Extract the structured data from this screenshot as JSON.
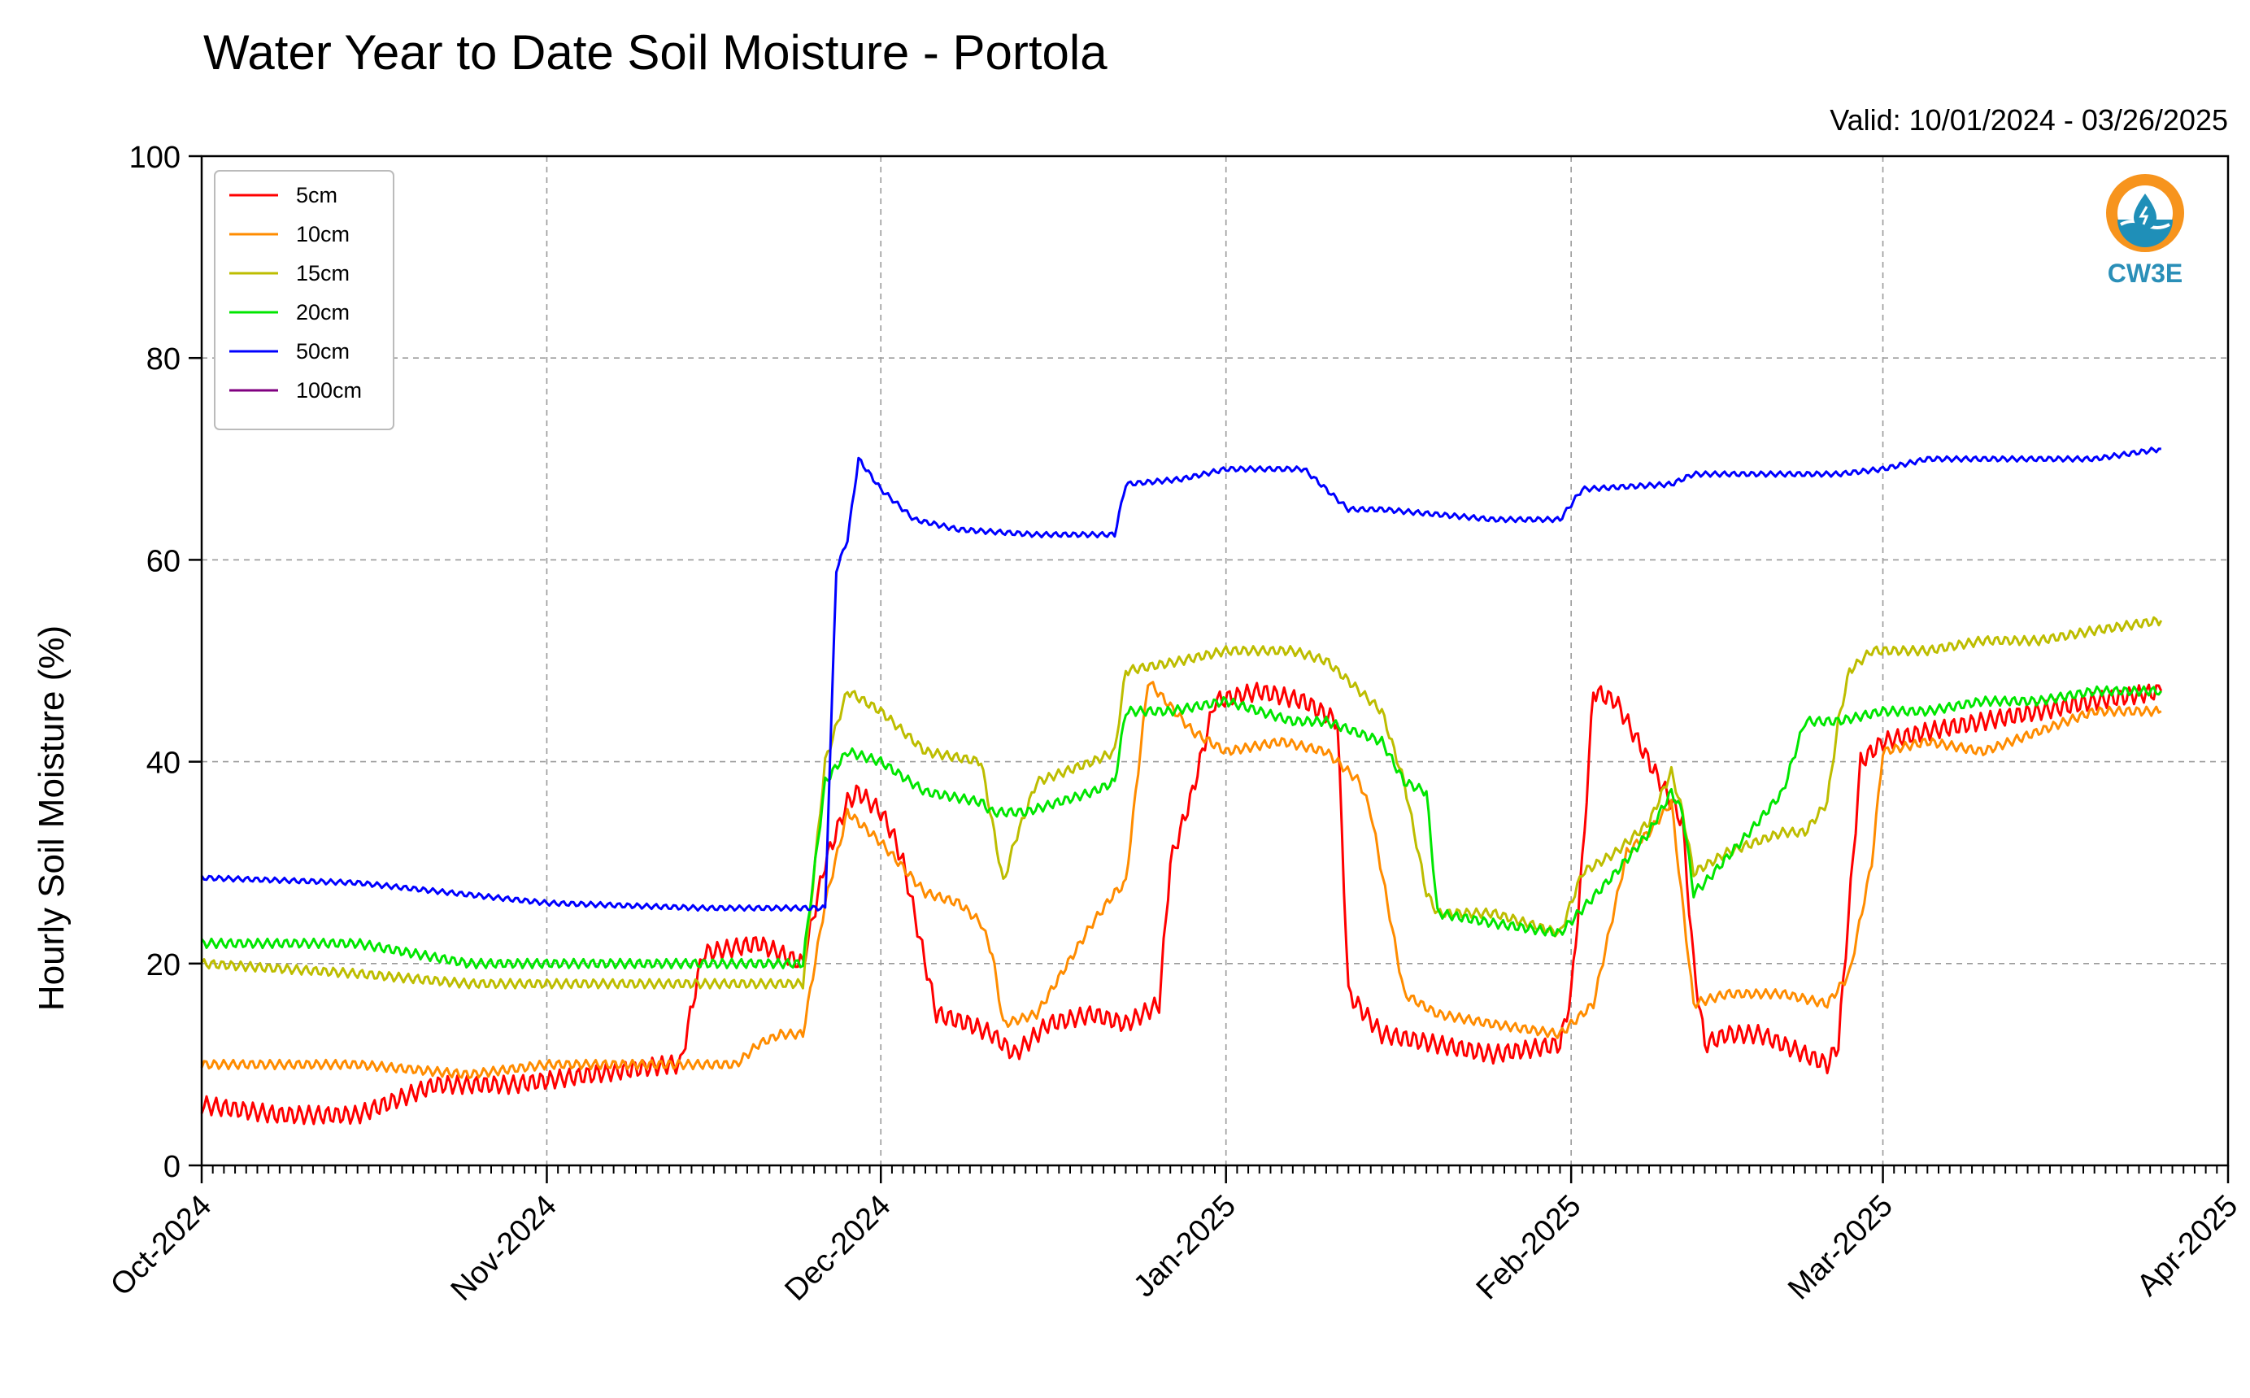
{
  "chart_data": {
    "type": "line",
    "title": "Water Year to Date Soil Moisture - Portola",
    "subtitle": "Valid: 10/01/2024 - 03/26/2025",
    "xlabel": "",
    "ylabel": "Hourly Soil Moisture (%)",
    "x_axis": "date",
    "xlim": [
      "2024-10-01",
      "2025-04-01"
    ],
    "ylim": [
      0,
      100
    ],
    "x_ticks": [
      "2024-10-01",
      "2024-11-01",
      "2024-12-01",
      "2025-01-01",
      "2025-02-01",
      "2025-03-01",
      "2025-04-01"
    ],
    "x_tick_labels": [
      "Oct-2024",
      "Nov-2024",
      "Dec-2024",
      "Jan-2025",
      "Feb-2025",
      "Mar-2025",
      "Apr-2025"
    ],
    "y_ticks": [
      0,
      20,
      40,
      60,
      80,
      100
    ],
    "y_tick_labels": [
      "0",
      "20",
      "40",
      "60",
      "80",
      "100"
    ],
    "grid": true,
    "legend_position": "top-left",
    "series": [
      {
        "name": "5cm",
        "color": "#ff0000",
        "x": [
          "2024-10-01",
          "2024-10-08",
          "2024-10-15",
          "2024-10-22",
          "2024-10-29",
          "2024-11-05",
          "2024-11-12",
          "2024-11-13",
          "2024-11-15",
          "2024-11-20",
          "2024-11-24",
          "2024-11-26",
          "2024-11-28",
          "2024-11-29",
          "2024-12-01",
          "2024-12-02",
          "2024-12-03",
          "2024-12-06",
          "2024-12-09",
          "2024-12-11",
          "2024-12-13",
          "2024-12-16",
          "2024-12-20",
          "2024-12-23",
          "2024-12-26",
          "2024-12-27",
          "2024-12-29",
          "2024-12-31",
          "2025-01-04",
          "2025-01-08",
          "2025-01-11",
          "2025-01-12",
          "2025-01-15",
          "2025-01-20",
          "2025-01-25",
          "2025-01-31",
          "2025-02-01",
          "2025-02-02",
          "2025-02-03",
          "2025-02-05",
          "2025-02-07",
          "2025-02-09",
          "2025-02-11",
          "2025-02-12",
          "2025-02-13",
          "2025-02-15",
          "2025-02-18",
          "2025-02-22",
          "2025-02-24",
          "2025-02-25",
          "2025-02-27",
          "2025-03-01",
          "2025-03-05",
          "2025-03-10",
          "2025-03-15",
          "2025-03-20",
          "2025-03-26"
        ],
        "y": [
          6,
          5,
          5,
          8,
          8,
          9,
          10,
          10,
          21,
          22,
          20,
          30,
          36,
          37,
          35,
          33,
          30,
          15,
          14,
          13,
          11,
          14,
          15,
          14,
          16,
          30,
          37,
          46,
          47,
          46,
          44,
          17,
          13,
          12,
          11,
          12,
          17,
          30,
          47,
          46,
          42,
          38,
          34,
          20,
          12,
          13,
          13,
          11,
          10,
          12,
          40,
          42,
          43,
          44,
          45,
          46,
          47
        ]
      },
      {
        "name": "10cm",
        "color": "#ff8c00",
        "x": [
          "2024-10-01",
          "2024-10-15",
          "2024-10-25",
          "2024-11-01",
          "2024-11-10",
          "2024-11-15",
          "2024-11-18",
          "2024-11-20",
          "2024-11-22",
          "2024-11-24",
          "2024-11-26",
          "2024-11-28",
          "2024-12-01",
          "2024-12-05",
          "2024-12-08",
          "2024-12-10",
          "2024-12-11",
          "2024-12-12",
          "2024-12-15",
          "2024-12-20",
          "2024-12-22",
          "2024-12-23",
          "2024-12-25",
          "2024-12-29",
          "2025-01-01",
          "2025-01-06",
          "2025-01-10",
          "2025-01-13",
          "2025-01-14",
          "2025-01-17",
          "2025-01-20",
          "2025-01-25",
          "2025-01-31",
          "2025-02-01",
          "2025-02-03",
          "2025-02-06",
          "2025-02-08",
          "2025-02-10",
          "2025-02-12",
          "2025-02-15",
          "2025-02-20",
          "2025-02-24",
          "2025-02-26",
          "2025-02-28",
          "2025-03-01",
          "2025-03-05",
          "2025-03-10",
          "2025-03-15",
          "2025-03-20",
          "2025-03-26"
        ],
        "y": [
          10,
          10,
          9,
          10,
          10,
          10,
          10,
          12,
          13,
          13,
          26,
          35,
          32,
          27,
          26,
          24,
          21,
          14,
          15,
          24,
          27,
          28,
          48,
          43,
          41,
          42,
          41,
          38,
          35,
          17,
          15,
          14,
          13,
          14,
          16,
          31,
          33,
          36,
          16,
          17,
          17,
          16,
          19,
          30,
          41,
          42,
          41,
          43,
          45,
          45
        ]
      },
      {
        "name": "15cm",
        "color": "#bdbd00",
        "x": [
          "2024-10-01",
          "2024-10-15",
          "2024-10-25",
          "2024-11-01",
          "2024-11-10",
          "2024-11-20",
          "2024-11-24",
          "2024-11-26",
          "2024-11-28",
          "2024-12-01",
          "2024-12-05",
          "2024-12-10",
          "2024-12-11",
          "2024-12-12",
          "2024-12-13",
          "2024-12-15",
          "2024-12-20",
          "2024-12-22",
          "2024-12-23",
          "2024-12-28",
          "2025-01-01",
          "2025-01-07",
          "2025-01-10",
          "2025-01-15",
          "2025-01-17",
          "2025-01-19",
          "2025-01-20",
          "2025-01-25",
          "2025-01-31",
          "2025-02-02",
          "2025-02-05",
          "2025-02-08",
          "2025-02-10",
          "2025-02-11",
          "2025-02-12",
          "2025-02-15",
          "2025-02-20",
          "2025-02-22",
          "2025-02-24",
          "2025-02-25",
          "2025-02-26",
          "2025-02-28",
          "2025-03-05",
          "2025-03-10",
          "2025-03-15",
          "2025-03-20",
          "2025-03-26"
        ],
        "y": [
          20,
          19,
          18,
          18,
          18,
          18,
          18,
          40,
          47,
          45,
          41,
          40,
          34,
          28,
          32,
          38,
          40,
          41,
          49,
          50,
          51,
          51,
          50,
          45,
          38,
          27,
          25,
          25,
          23,
          29,
          31,
          34,
          39,
          35,
          29,
          31,
          33,
          33,
          36,
          44,
          49,
          51,
          51,
          52,
          52,
          53,
          54
        ]
      },
      {
        "name": "20cm",
        "color": "#00e600",
        "x": [
          "2024-10-01",
          "2024-10-15",
          "2024-10-25",
          "2024-11-01",
          "2024-11-10",
          "2024-11-20",
          "2024-11-24",
          "2024-11-26",
          "2024-11-28",
          "2024-12-01",
          "2024-12-05",
          "2024-12-10",
          "2024-12-11",
          "2024-12-14",
          "2024-12-20",
          "2024-12-22",
          "2024-12-23",
          "2024-12-27",
          "2025-01-01",
          "2025-01-07",
          "2025-01-10",
          "2025-01-15",
          "2025-01-17",
          "2025-01-19",
          "2025-01-20",
          "2025-01-25",
          "2025-01-31",
          "2025-02-05",
          "2025-02-08",
          "2025-02-10",
          "2025-02-11",
          "2025-02-12",
          "2025-02-13",
          "2025-02-17",
          "2025-02-20",
          "2025-02-22",
          "2025-02-25",
          "2025-03-01",
          "2025-03-05",
          "2025-03-10",
          "2025-03-15",
          "2025-03-20",
          "2025-03-26"
        ],
        "y": [
          22,
          22,
          20,
          20,
          20,
          20,
          20,
          38,
          41,
          40,
          37,
          36,
          35,
          35,
          37,
          38,
          45,
          45,
          46,
          44,
          44,
          42,
          38,
          37,
          25,
          24,
          23,
          29,
          33,
          37,
          35,
          27,
          28,
          33,
          37,
          44,
          44,
          45,
          45,
          46,
          46,
          47,
          47
        ]
      },
      {
        "name": "50cm",
        "color": "#0000ff",
        "x": [
          "2024-10-01",
          "2024-10-15",
          "2024-11-01",
          "2024-11-15",
          "2024-11-26",
          "2024-11-27",
          "2024-11-28",
          "2024-11-29",
          "2024-12-01",
          "2024-12-04",
          "2024-12-08",
          "2024-12-15",
          "2024-12-20",
          "2024-12-22",
          "2024-12-23",
          "2024-12-28",
          "2025-01-01",
          "2025-01-08",
          "2025-01-12",
          "2025-01-15",
          "2025-01-20",
          "2025-01-25",
          "2025-01-31",
          "2025-02-01",
          "2025-02-02",
          "2025-02-10",
          "2025-02-12",
          "2025-02-15",
          "2025-02-20",
          "2025-02-25",
          "2025-03-01",
          "2025-03-05",
          "2025-03-10",
          "2025-03-15",
          "2025-03-20",
          "2025-03-26"
        ],
        "y": [
          28.5,
          28,
          26,
          25.5,
          25.5,
          59,
          62,
          70,
          67,
          64,
          63,
          62.5,
          62.5,
          62.5,
          67.5,
          68,
          69,
          69,
          65,
          65,
          64.5,
          64,
          64,
          65.5,
          67,
          67.5,
          68.5,
          68.5,
          68.5,
          68.5,
          69,
          70,
          70,
          70,
          70,
          71
        ]
      },
      {
        "name": "100cm",
        "color": "#800080",
        "x": [],
        "y": []
      }
    ]
  },
  "logo": {
    "text": "CW3E",
    "color_ring": "#f7941d",
    "color_water": "#1f8fb8",
    "color_text": "#2a8fb8"
  }
}
